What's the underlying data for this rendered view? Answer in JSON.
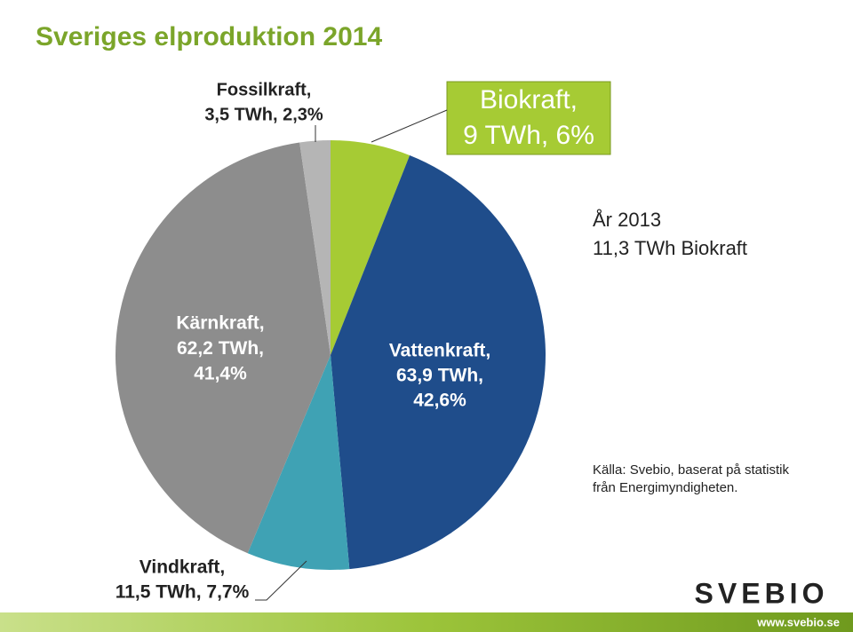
{
  "chart_data": {
    "type": "pie",
    "title": "Sveriges elproduktion 2014",
    "values": [
      6,
      42.6,
      7.7,
      41.4,
      2.3
    ],
    "value_labels": [
      [
        "Biokraft,",
        "9 TWh, 6%"
      ],
      [
        "Vattenkraft,",
        "63,9 TWh,",
        "42,6%"
      ],
      [
        "Vindkraft,",
        "11,5 TWh, 7,7%"
      ],
      [
        "Kärnkraft,",
        "62,2 TWh,",
        "41,4%"
      ],
      [
        "Fossilkraft,",
        "3,5 TWh, 2,3%"
      ]
    ],
    "colors": [
      "#a6cb34",
      "#1f4d8b",
      "#3fa2b4",
      "#8d8d8d",
      "#b5b5b5"
    ],
    "annotation": [
      "År 2013",
      "11,3 TWh Biokraft"
    ],
    "source": [
      "Källa: Svebio, baserat på statistik",
      "från Energimyndigheten."
    ],
    "logo": "SVEBIO",
    "footer": "www.svebio.se"
  }
}
